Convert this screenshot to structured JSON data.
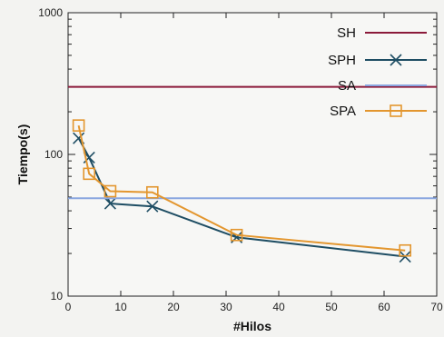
{
  "chart_data": {
    "type": "line",
    "xlabel": "#Hilos",
    "ylabel": "Tiempo(s)",
    "xlim": [
      0,
      70
    ],
    "ylim": [
      10,
      1000
    ],
    "yscale": "log",
    "x_ticks": [
      0,
      10,
      20,
      30,
      40,
      50,
      60,
      70
    ],
    "y_ticks": [
      10,
      100,
      1000
    ],
    "x_tick_labels": [
      "0",
      "10",
      "20",
      "30",
      "40",
      "50",
      "60",
      "70"
    ],
    "y_tick_labels": [
      "10",
      "100",
      "1000"
    ],
    "grid": false,
    "legend_position": "top-right",
    "series": [
      {
        "name": "SH",
        "color": "#8b1a3a",
        "marker": "none",
        "x": [
          0,
          70
        ],
        "y": [
          300,
          300
        ]
      },
      {
        "name": "SPH",
        "color": "#1e4d63",
        "marker": "x",
        "x": [
          2,
          4,
          8,
          16,
          32,
          64
        ],
        "y": [
          130,
          95,
          45,
          43,
          26,
          19
        ]
      },
      {
        "name": "SA",
        "color": "#8aa6e0",
        "marker": "none",
        "x": [
          0,
          70
        ],
        "y": [
          49,
          49
        ]
      },
      {
        "name": "SPA",
        "color": "#e3962e",
        "marker": "square",
        "x": [
          2,
          4,
          8,
          16,
          32,
          64
        ],
        "y": [
          160,
          73,
          55,
          54,
          27,
          21
        ]
      }
    ]
  }
}
